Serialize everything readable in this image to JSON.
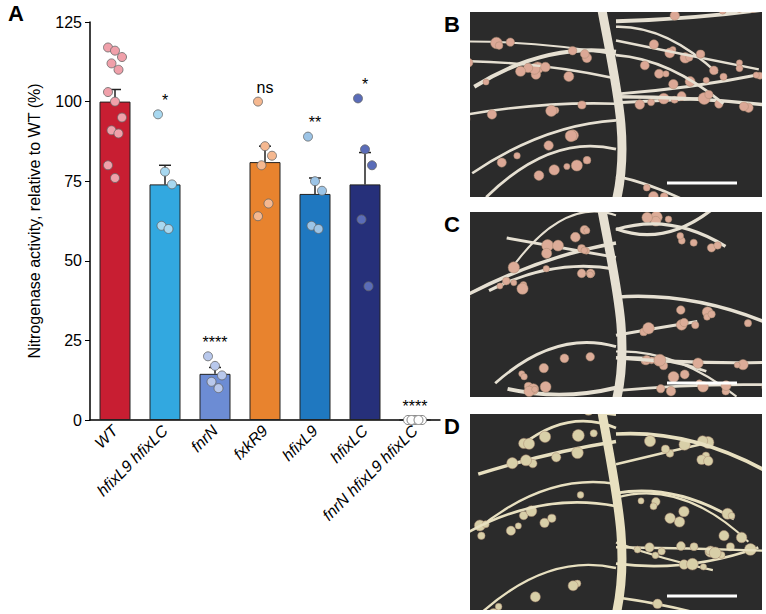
{
  "chart_data": {
    "type": "bar",
    "panel": "A",
    "ylabel": "Nitrogenase activity, relative to WT (%)",
    "categories": [
      "WT",
      "hfixL9 hfixLC",
      "fnrN",
      "fxkR9",
      "hfixL9",
      "hfixLC",
      "fnrN hfixL9 hfixLC"
    ],
    "series": [
      {
        "type": "bar",
        "values": [
          100,
          74,
          14.5,
          81,
          71,
          74,
          0
        ],
        "errors": [
          3.8,
          6,
          2,
          5,
          5,
          10,
          0
        ],
        "colors": [
          "#c81e32",
          "#32a8e0",
          "#6c8cd4",
          "#e8832e",
          "#1f78c0",
          "#26307a",
          "#ffffff"
        ],
        "significance": [
          null,
          "*",
          "****",
          "ns",
          "**",
          "*",
          "****"
        ]
      },
      {
        "type": "scatter",
        "marker": "circle",
        "values": [
          [
            117,
            116,
            114,
            112,
            110,
            103,
            100,
            95,
            91,
            90,
            80,
            76
          ],
          [
            96,
            78,
            74,
            61,
            60
          ],
          [
            20,
            17,
            14,
            12,
            10
          ],
          [
            100,
            86,
            83,
            80,
            68,
            64
          ],
          [
            89,
            75,
            72,
            61,
            60
          ],
          [
            101,
            85,
            80,
            63,
            42
          ],
          [
            0,
            0,
            0,
            0,
            0
          ]
        ],
        "colors": [
          "#f0a0aa",
          "#a8d8f0",
          "#b8c8ec",
          "#f5b890",
          "#9cc4e6",
          "#5a6cb8",
          "#ffffff"
        ]
      }
    ],
    "ylim": [
      0,
      125
    ],
    "yticks": [
      0,
      25,
      50,
      75,
      100,
      125
    ],
    "grid": false
  },
  "photos": [
    {
      "label": "B"
    },
    {
      "label": "C"
    },
    {
      "label": "D"
    }
  ]
}
